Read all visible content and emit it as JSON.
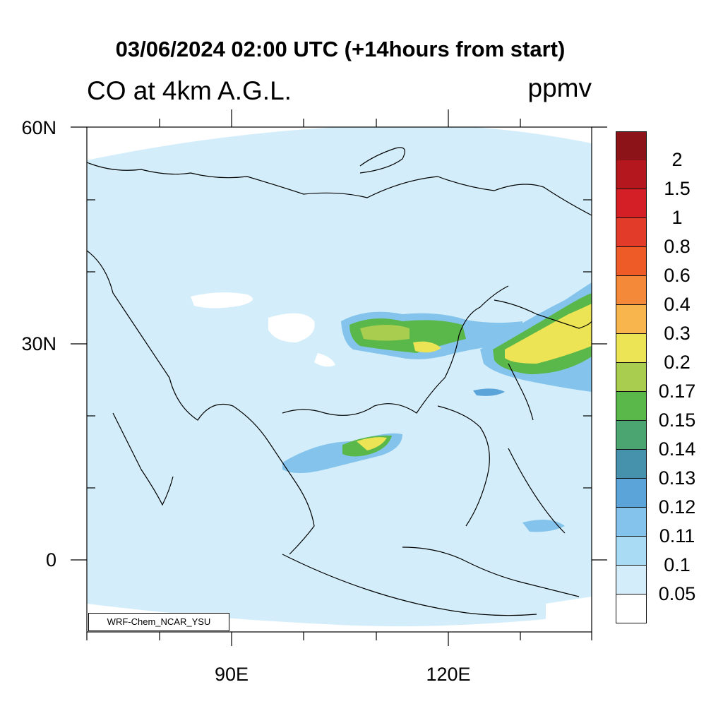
{
  "title": "03/06/2024 02:00 UTC (+14hours from start)",
  "subtitle": "CO at 4km A.G.L.",
  "units": "ppmv",
  "credit": "WRF-Chem_NCAR_YSU",
  "axes": {
    "lat_labels": [
      "60N",
      "30N",
      "0"
    ],
    "lon_labels": [
      "90E",
      "120E"
    ]
  },
  "colors": {
    "background_field": "#d3eefa",
    "ocean_no_data": "#ffffff",
    "coastline": "#000000"
  },
  "colorbar": {
    "labels": [
      "2",
      "1.5",
      "1",
      "0.8",
      "0.6",
      "0.4",
      "0.3",
      "0.2",
      "0.17",
      "0.15",
      "0.14",
      "0.13",
      "0.12",
      "0.11",
      "0.1",
      "0.05"
    ],
    "colors": [
      "#8c1418",
      "#b5171e",
      "#d41f27",
      "#e33b2a",
      "#ef5b27",
      "#f5893a",
      "#f9b54d",
      "#ece455",
      "#a9cd4f",
      "#5ab84b",
      "#4aa571",
      "#4692ad",
      "#5ba4d9",
      "#84c4ec",
      "#a9dcf4",
      "#d3eefa",
      "#ffffff"
    ]
  }
}
